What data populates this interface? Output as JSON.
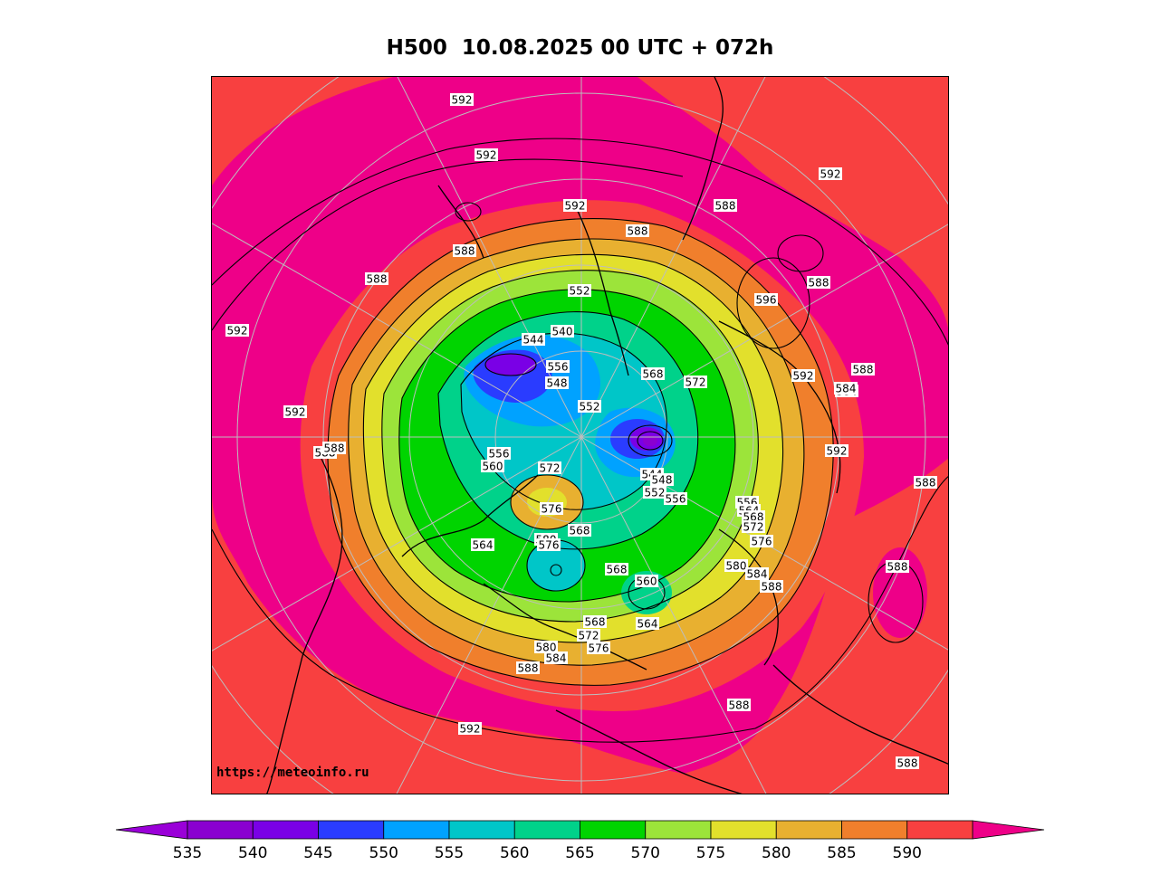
{
  "title": "H500  10.08.2025 00 UTC + 072h",
  "watermark": "https://meteoinfo.ru",
  "colors": {
    "535": "#8a00d0",
    "540": "#7a00e6",
    "545": "#2a3cff",
    "550": "#00a2ff",
    "555": "#00c6c8",
    "560": "#00d28a",
    "565": "#00d400",
    "570": "#9ce43a",
    "575": "#e2e02c",
    "580": "#e8b030",
    "585": "#f07f2c",
    "590": "#f84040",
    "595": "#ee0088"
  },
  "colorbar": {
    "ticks": [
      "535",
      "540",
      "545",
      "550",
      "555",
      "560",
      "565",
      "570",
      "575",
      "580",
      "585",
      "590"
    ],
    "bins": [
      "#8a00d0",
      "#7a00e6",
      "#2a3cff",
      "#00a2ff",
      "#00c6c8",
      "#00d28a",
      "#00d400",
      "#9ce43a",
      "#e2e02c",
      "#e8b030",
      "#f07f2c",
      "#f84040"
    ],
    "under_color": "#9a00d8",
    "over_color": "#ee0088"
  },
  "contour_labels": [
    "592",
    "592",
    "588",
    "592",
    "588",
    "592",
    "592",
    "588",
    "588",
    "592",
    "584",
    "556",
    "552",
    "548",
    "544",
    "540",
    "552",
    "568",
    "572",
    "596",
    "588",
    "592",
    "588",
    "584",
    "592",
    "588",
    "560",
    "556",
    "572",
    "576",
    "564",
    "580",
    "576",
    "568",
    "568",
    "560",
    "564",
    "544",
    "548",
    "552",
    "556",
    "556",
    "564",
    "568",
    "572",
    "576",
    "580",
    "584",
    "588",
    "588",
    "568",
    "572",
    "576",
    "580",
    "584",
    "588",
    "588",
    "592",
    "588",
    "588",
    "588"
  ]
}
